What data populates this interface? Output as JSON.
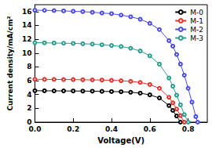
{
  "chart_data": {
    "type": "line",
    "x_label": "Voltage(V)",
    "y_label": "Current density/mA/cm²",
    "x": [
      0,
      0.05,
      0.1,
      0.15,
      0.2,
      0.25,
      0.3,
      0.35,
      0.4,
      0.45,
      0.5,
      0.55,
      0.6,
      0.65,
      0.7,
      0.72,
      0.74,
      0.76,
      0.78,
      0.8,
      0.82,
      0.84,
      0.85
    ],
    "series": [
      {
        "name": "M-0",
        "color": "#000000",
        "marker": "circle",
        "line_style": "solid",
        "values": [
          4.55,
          4.54,
          4.53,
          4.52,
          4.51,
          4.5,
          4.48,
          4.46,
          4.43,
          4.4,
          4.33,
          4.2,
          3.95,
          3.5,
          2.4,
          1.7,
          0.9,
          0.0,
          null,
          null,
          null,
          null,
          null
        ]
      },
      {
        "name": "M-1",
        "color": "#e8312b",
        "marker": "circle",
        "line_style": "solid",
        "values": [
          6.2,
          6.19,
          6.18,
          6.17,
          6.16,
          6.14,
          6.12,
          6.1,
          6.06,
          6.0,
          5.9,
          5.75,
          5.45,
          4.9,
          3.6,
          2.8,
          1.9,
          0.95,
          0.0,
          null,
          null,
          null,
          null
        ]
      },
      {
        "name": "M-2",
        "color": "#4a4ae6",
        "marker": "circle",
        "line_style": "solid",
        "values": [
          16.2,
          16.18,
          16.15,
          16.1,
          16.05,
          16.0,
          15.9,
          15.8,
          15.7,
          15.5,
          15.25,
          14.9,
          14.3,
          13.4,
          11.8,
          11.0,
          9.8,
          8.4,
          6.8,
          4.9,
          2.9,
          0.8,
          0.0
        ]
      },
      {
        "name": "M-3",
        "color": "#2a9d8f",
        "marker": "circle",
        "line_style": "solid",
        "values": [
          11.5,
          11.48,
          11.45,
          11.42,
          11.4,
          11.35,
          11.3,
          11.2,
          11.1,
          10.95,
          10.7,
          10.3,
          9.6,
          8.4,
          6.4,
          5.2,
          3.9,
          2.5,
          1.1,
          0.0,
          null,
          null,
          null
        ]
      }
    ],
    "xlim": [
      0,
      0.9
    ],
    "xticks": [
      {
        "value": 0,
        "label": "0.0"
      },
      {
        "value": 0.2,
        "label": "0.2"
      },
      {
        "value": 0.4,
        "label": "0.4"
      },
      {
        "value": 0.6,
        "label": "0.6"
      },
      {
        "value": 0.8,
        "label": "0.8"
      }
    ],
    "ylim": [
      0,
      17
    ],
    "yticks": [
      0,
      2,
      4,
      6,
      8,
      10,
      12,
      14,
      16
    ],
    "grid": false,
    "legend": "top-right"
  }
}
